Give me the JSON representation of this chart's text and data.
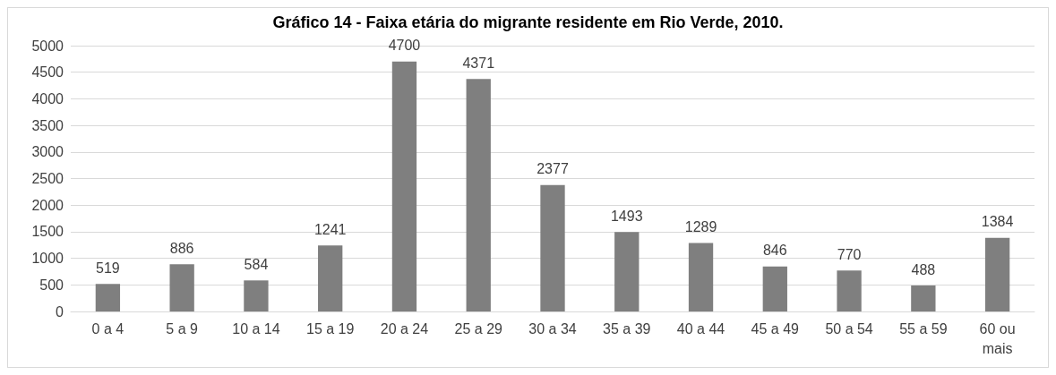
{
  "chart_data": {
    "type": "bar",
    "title": "Gráfico 14 - Faixa etária do migrante residente em Rio Verde, 2010.",
    "categories": [
      "0 a 4",
      "5 a 9",
      "10 a 14",
      "15 a 19",
      "20 a 24",
      "25 a 29",
      "30 a 34",
      "35 a 39",
      "40 a 44",
      "45 a 49",
      "50 a 54",
      "55 a 59",
      "60 ou\nmais"
    ],
    "values": [
      519,
      886,
      584,
      1241,
      4700,
      4371,
      2377,
      1493,
      1289,
      846,
      770,
      488,
      1384
    ],
    "color": "#7f7f7f",
    "ylim": [
      0,
      5000
    ],
    "yticks": [
      0,
      500,
      1000,
      1500,
      2000,
      2500,
      3000,
      3500,
      4000,
      4500,
      5000
    ],
    "grid": "y",
    "data_labels": true
  }
}
